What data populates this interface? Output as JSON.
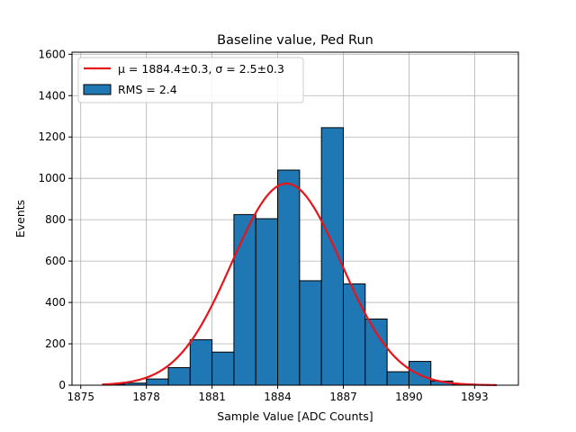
{
  "chart_data": {
    "type": "bar",
    "title": "Baseline value, Ped Run",
    "xlabel": "Sample Value [ADC Counts]",
    "ylabel": "Events",
    "xlim": [
      1874.6,
      1895.0
    ],
    "ylim": [
      0,
      1610
    ],
    "x_ticks": [
      1875,
      1878,
      1881,
      1884,
      1887,
      1890,
      1893
    ],
    "y_ticks": [
      0,
      200,
      400,
      600,
      800,
      1000,
      1200,
      1400,
      1600
    ],
    "grid": true,
    "legend_position": "top-left",
    "bin_width": 1.0,
    "bins": [
      {
        "left": 1876,
        "value": 5
      },
      {
        "left": 1877,
        "value": 10
      },
      {
        "left": 1878,
        "value": 30
      },
      {
        "left": 1879,
        "value": 85
      },
      {
        "left": 1880,
        "value": 220
      },
      {
        "left": 1881,
        "value": 160
      },
      {
        "left": 1882,
        "value": 825
      },
      {
        "left": 1883,
        "value": 805
      },
      {
        "left": 1884,
        "value": 1040
      },
      {
        "left": 1885,
        "value": 505
      },
      {
        "left": 1886,
        "value": 1245
      },
      {
        "left": 1887,
        "value": 490
      },
      {
        "left": 1888,
        "value": 320
      },
      {
        "left": 1889,
        "value": 65
      },
      {
        "left": 1890,
        "value": 115
      },
      {
        "left": 1891,
        "value": 20
      },
      {
        "left": 1892,
        "value": 5
      },
      {
        "left": 1893,
        "value": 2
      }
    ],
    "fit": {
      "mu": 1884.4,
      "sigma": 2.5,
      "amplitude": 975,
      "x_range": [
        1876,
        1894
      ]
    },
    "legend": {
      "fit_label": "μ = 1884.4±0.3, σ = 2.5±0.3",
      "hist_label": "RMS = 2.4"
    },
    "colors": {
      "bar_fill": "#1f77b4",
      "bar_edge": "#000000",
      "fit_line": "#e8141a",
      "grid": "#b0b0b0"
    }
  }
}
